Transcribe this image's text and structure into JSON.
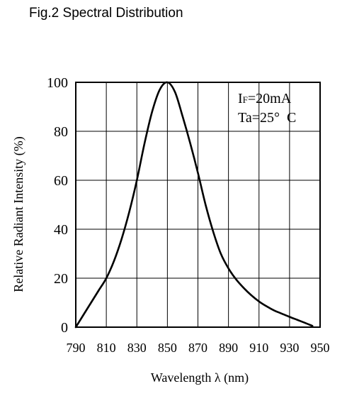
{
  "figure": {
    "title": "Fig.2 Spectral Distribution"
  },
  "chart_data": {
    "type": "line",
    "title": "",
    "xlabel": "Wavelength λ (nm)",
    "ylabel": "Relative Radiant Intensity (%)",
    "xlim": [
      790,
      950
    ],
    "ylim": [
      0,
      100
    ],
    "xticks": [
      "790",
      "810",
      "830",
      "850",
      "870",
      "890",
      "910",
      "930",
      "950"
    ],
    "yticks": [
      "0",
      "20",
      "40",
      "60",
      "80",
      "100"
    ],
    "grid": true,
    "annotations": [
      {
        "main": "I",
        "sub": "F",
        "rest": "=20mA"
      },
      {
        "text": "Ta=25°  C"
      }
    ],
    "series": [
      {
        "x": [
          790,
          795,
          800,
          805,
          810,
          815,
          820,
          825,
          830,
          835,
          840,
          845,
          850,
          855,
          860,
          865,
          870,
          875,
          880,
          885,
          890,
          895,
          900,
          905,
          910,
          915,
          920,
          925,
          930,
          935,
          940,
          945
        ],
        "y": [
          0,
          5,
          10,
          15,
          20,
          27,
          36,
          47,
          60,
          75,
          88,
          97,
          100,
          96,
          86,
          75,
          63,
          50,
          39,
          30,
          24,
          19.5,
          16,
          13,
          10.5,
          8.5,
          6.8,
          5.5,
          4.2,
          3,
          1.8,
          0.5
        ]
      }
    ]
  }
}
